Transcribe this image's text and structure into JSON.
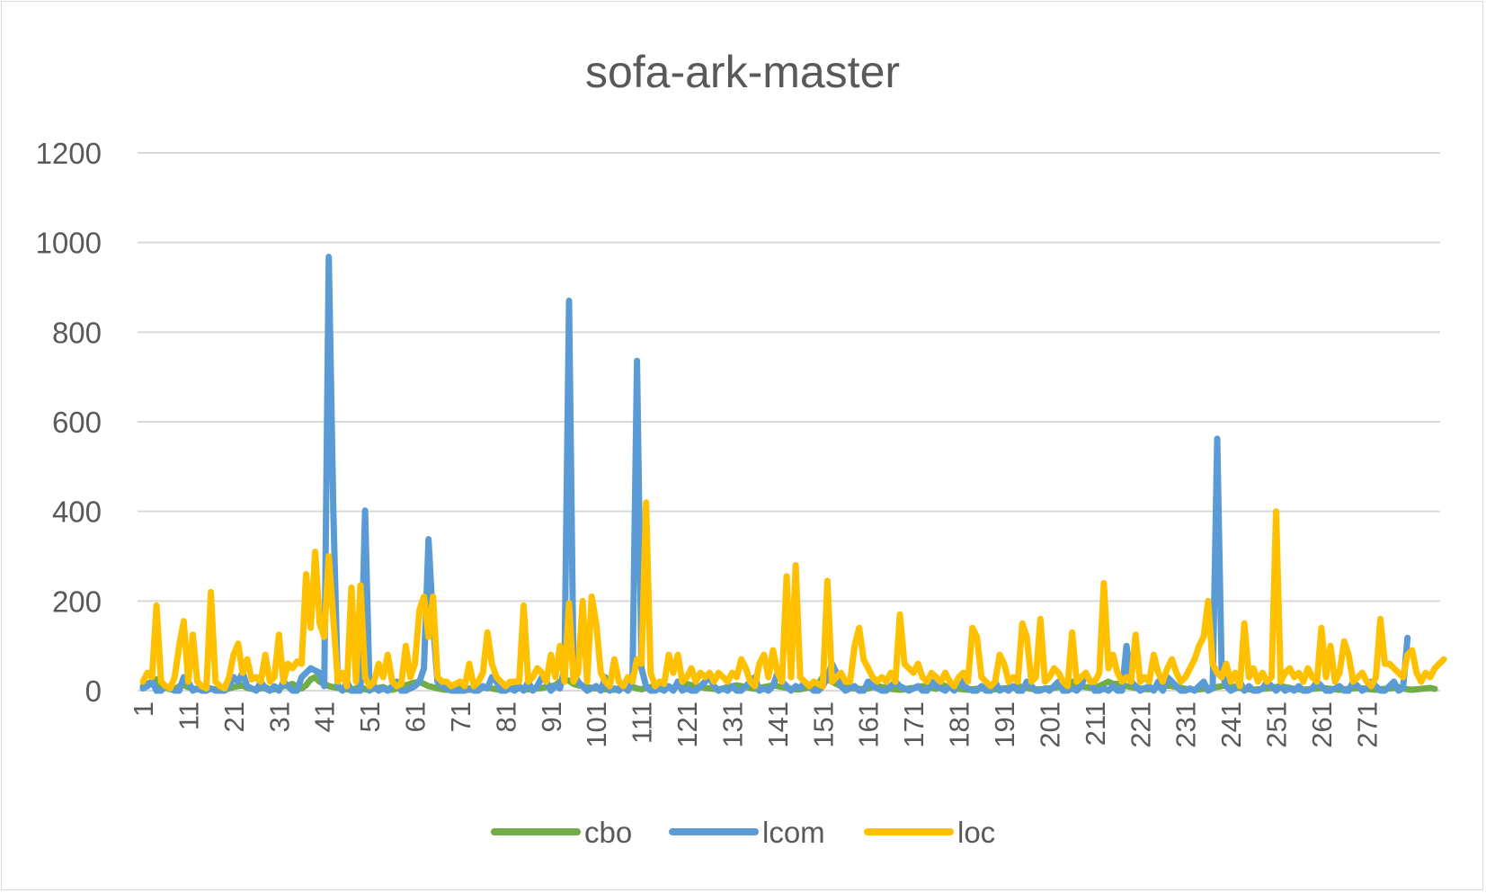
{
  "chart_data": {
    "type": "line",
    "title": "sofa-ark-master",
    "xlabel": "",
    "ylabel": "",
    "ylim": [
      0,
      1200
    ],
    "yticks": [
      0,
      200,
      400,
      600,
      800,
      1000,
      1200
    ],
    "xlim": [
      1,
      278
    ],
    "xtick_labels": [
      "1",
      "11",
      "21",
      "31",
      "41",
      "51",
      "61",
      "71",
      "81",
      "91",
      "101",
      "111",
      "121",
      "131",
      "141",
      "151",
      "161",
      "171",
      "181",
      "191",
      "201",
      "211",
      "221",
      "231",
      "241",
      "251",
      "261",
      "271"
    ],
    "grid": true,
    "legend_position": "bottom",
    "series": [
      {
        "name": "cbo",
        "color": "#70ad47",
        "values": [
          10,
          15,
          20,
          25,
          5,
          8,
          3,
          2,
          10,
          12,
          8,
          5,
          3,
          2,
          6,
          4,
          3,
          2,
          2,
          5,
          8,
          10,
          12,
          6,
          4,
          3,
          5,
          8,
          2,
          3,
          6,
          10,
          12,
          15,
          8,
          5,
          12,
          25,
          30,
          20,
          15,
          10,
          8,
          6,
          4,
          3,
          2,
          5,
          8,
          3,
          2,
          4,
          6,
          8,
          3,
          2,
          5,
          10,
          12,
          15,
          18,
          20,
          15,
          10,
          8,
          5,
          3,
          2,
          2,
          3,
          4,
          3,
          2,
          2,
          4,
          6,
          8,
          5,
          3,
          2,
          3,
          4,
          6,
          5,
          3,
          3,
          4,
          5,
          6,
          8,
          10,
          12,
          20,
          25,
          22,
          15,
          12,
          10,
          8,
          6,
          5,
          4,
          3,
          3,
          2,
          5,
          6,
          10,
          8,
          5,
          3,
          6,
          8,
          10,
          12,
          10,
          8,
          6,
          10,
          12,
          15,
          12,
          10,
          8,
          6,
          5,
          4,
          3,
          5,
          8,
          10,
          12,
          10,
          8,
          6,
          4,
          5,
          8,
          10,
          12,
          10,
          8,
          6,
          4,
          3,
          3,
          5,
          8,
          10,
          15,
          30,
          25,
          20,
          15,
          10,
          8,
          6,
          5,
          4,
          3,
          5,
          8,
          10,
          8,
          6,
          4,
          3,
          2,
          3,
          5,
          6,
          8,
          10,
          8,
          6,
          4,
          15,
          10,
          8,
          6,
          4,
          3,
          2,
          3,
          4,
          5,
          3,
          2,
          3,
          4,
          5,
          6,
          8,
          10,
          8,
          6,
          4,
          3,
          3,
          4,
          5,
          6,
          8,
          10,
          15,
          20,
          15,
          10,
          8,
          6,
          5,
          10,
          15,
          20,
          15,
          15,
          12,
          10,
          8,
          6,
          5,
          4,
          3,
          5,
          8,
          10,
          12,
          10,
          8,
          6,
          4,
          3,
          2,
          3,
          4,
          5,
          6,
          8,
          10,
          12,
          10,
          8,
          6,
          4,
          3,
          2,
          3,
          4,
          5,
          6,
          8,
          10,
          8,
          6,
          4,
          3,
          2,
          3,
          4,
          5,
          6,
          5,
          4,
          3,
          2,
          3,
          4,
          5,
          6,
          5,
          4,
          3,
          2,
          3,
          4,
          5,
          6,
          8,
          5,
          3,
          2,
          3,
          4,
          5,
          6,
          4
        ]
      },
      {
        "name": "lcom",
        "color": "#5b9bd5",
        "values": [
          5,
          10,
          20,
          0,
          0,
          10,
          5,
          0,
          0,
          30,
          20,
          0,
          5,
          0,
          0,
          5,
          0,
          0,
          0,
          10,
          30,
          20,
          40,
          10,
          5,
          0,
          20,
          5,
          0,
          10,
          0,
          20,
          10,
          0,
          0,
          30,
          40,
          50,
          45,
          40,
          10,
          968,
          400,
          10,
          0,
          20,
          0,
          0,
          0,
          402,
          0,
          10,
          0,
          5,
          0,
          10,
          20,
          0,
          0,
          5,
          10,
          20,
          50,
          338,
          150,
          20,
          10,
          5,
          0,
          0,
          0,
          0,
          5,
          0,
          0,
          10,
          5,
          30,
          20,
          0,
          0,
          5,
          0,
          10,
          0,
          20,
          0,
          10,
          30,
          20,
          0,
          10,
          5,
          50,
          870,
          40,
          20,
          10,
          0,
          5,
          10,
          0,
          30,
          0,
          5,
          0,
          10,
          0,
          20,
          736,
          50,
          10,
          0,
          0,
          5,
          0,
          10,
          0,
          20,
          0,
          5,
          0,
          0,
          10,
          20,
          30,
          10,
          0,
          5,
          0,
          10,
          0,
          0,
          10,
          20,
          30,
          0,
          5,
          0,
          10,
          40,
          20,
          10,
          0,
          10,
          5,
          20,
          10,
          0,
          0,
          10,
          30,
          60,
          40,
          10,
          0,
          5,
          10,
          0,
          0,
          20,
          10,
          5,
          0,
          0,
          10,
          20,
          10,
          5,
          0,
          5,
          10,
          0,
          0,
          20,
          10,
          5,
          0,
          10,
          0,
          30,
          10,
          5,
          0,
          0,
          10,
          0,
          0,
          20,
          0,
          5,
          0,
          10,
          0,
          0,
          20,
          10,
          0,
          0,
          5,
          0,
          10,
          20,
          0,
          0,
          5,
          0,
          10,
          40,
          20,
          0,
          0,
          5,
          0,
          10,
          0,
          0,
          100,
          20,
          10,
          0,
          5,
          10,
          0,
          20,
          0,
          30,
          20,
          10,
          0,
          0,
          5,
          0,
          10,
          20,
          0,
          5,
          562,
          40,
          10,
          0,
          5,
          20,
          0,
          10,
          0,
          0,
          5,
          20,
          10,
          0,
          10,
          0,
          5,
          0,
          10,
          0,
          0,
          5,
          20,
          10,
          0,
          0,
          5,
          10,
          0,
          0,
          20,
          10,
          0,
          5,
          20,
          10,
          0,
          0,
          10,
          20,
          0,
          5,
          118
        ]
      },
      {
        "name": "loc",
        "color": "#ffc000",
        "values": [
          20,
          40,
          30,
          190,
          20,
          10,
          5,
          30,
          100,
          155,
          20,
          125,
          20,
          10,
          5,
          220,
          20,
          10,
          5,
          30,
          80,
          105,
          40,
          70,
          25,
          30,
          20,
          80,
          20,
          30,
          125,
          20,
          60,
          50,
          65,
          60,
          260,
          140,
          310,
          150,
          120,
          300,
          160,
          20,
          40,
          10,
          230,
          20,
          235,
          30,
          10,
          20,
          60,
          30,
          80,
          20,
          10,
          15,
          100,
          30,
          60,
          180,
          210,
          120,
          210,
          30,
          20,
          20,
          10,
          15,
          20,
          10,
          60,
          10,
          20,
          40,
          130,
          60,
          30,
          20,
          10,
          20,
          20,
          20,
          190,
          20,
          30,
          50,
          40,
          20,
          80,
          30,
          100,
          20,
          195,
          20,
          40,
          200,
          20,
          210,
          150,
          40,
          20,
          10,
          70,
          20,
          10,
          30,
          20,
          70,
          60,
          420,
          40,
          10,
          20,
          15,
          80,
          40,
          80,
          20,
          30,
          50,
          20,
          40,
          30,
          40,
          20,
          40,
          30,
          20,
          40,
          30,
          70,
          50,
          20,
          10,
          60,
          80,
          30,
          90,
          40,
          20,
          255,
          30,
          280,
          30,
          20,
          10,
          20,
          15,
          10,
          245,
          20,
          30,
          40,
          20,
          20,
          100,
          140,
          70,
          50,
          30,
          20,
          30,
          20,
          40,
          20,
          170,
          60,
          50,
          40,
          60,
          30,
          20,
          40,
          30,
          20,
          40,
          20,
          10,
          30,
          40,
          20,
          140,
          120,
          30,
          20,
          10,
          20,
          80,
          60,
          20,
          30,
          20,
          150,
          120,
          20,
          30,
          160,
          20,
          30,
          50,
          40,
          20,
          10,
          130,
          20,
          30,
          40,
          20,
          20,
          40,
          240,
          50,
          80,
          40,
          20,
          30,
          20,
          125,
          20,
          30,
          20,
          80,
          40,
          20,
          50,
          70,
          40,
          20,
          30,
          50,
          70,
          100,
          120,
          200,
          60,
          40,
          30,
          60,
          20,
          40,
          10,
          150,
          30,
          50,
          20,
          40,
          20,
          30,
          400,
          20,
          40,
          50,
          30,
          40,
          20,
          50,
          30,
          20,
          140,
          30,
          100,
          20,
          40,
          110,
          80,
          20,
          30,
          40,
          20,
          10,
          30,
          160,
          60,
          60,
          50,
          40,
          30,
          80,
          90,
          40,
          20,
          40,
          30,
          50,
          60,
          70
        ]
      }
    ]
  }
}
